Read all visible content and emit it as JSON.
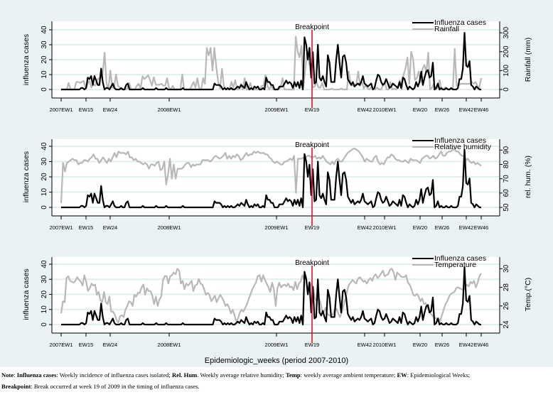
{
  "chart_data": [
    {
      "type": "line",
      "panel": "rainfall",
      "left_ylabel": "influenza cases",
      "right_ylabel": "Rainfall (mm)",
      "left_ylim": [
        0,
        40
      ],
      "left_yticks": [
        "0",
        "10",
        "20",
        "30",
        "40"
      ],
      "right_ylim": [
        0,
        300
      ],
      "right_yticks": [
        "0",
        "100",
        "200",
        "300"
      ],
      "breakpoint_label": "Breakpoint",
      "legend": [
        "Influenza cases",
        "Rainfall"
      ],
      "legend_position": "top-right",
      "series": [
        {
          "name": "Influenza cases",
          "color": "#000000",
          "axis": "left",
          "values": "flu"
        },
        {
          "name": "Rainfall",
          "color": "#b8b8b8",
          "axis": "right",
          "values": [
            0,
            0,
            0,
            0,
            35,
            0,
            0,
            0,
            40,
            40,
            35,
            40,
            45,
            5,
            30,
            45,
            10,
            30,
            20,
            50,
            60,
            60,
            90,
            195,
            30,
            5,
            100,
            10,
            10,
            80,
            20,
            10,
            0,
            0,
            0,
            5,
            35,
            0,
            0,
            0,
            20,
            30,
            5,
            70,
            55,
            65,
            75,
            50,
            20,
            65,
            25,
            25,
            25,
            30,
            20,
            20,
            60,
            10,
            0,
            20,
            0,
            0,
            0,
            0,
            80,
            0,
            0,
            0,
            0,
            20,
            40,
            10,
            60,
            5,
            0,
            60,
            30,
            220,
            180,
            220,
            100,
            220,
            120,
            40,
            5,
            110,
            20,
            0,
            0,
            0,
            40,
            10,
            50,
            0,
            0,
            30,
            0,
            60,
            0,
            0,
            35,
            0,
            0,
            0,
            0,
            0,
            20,
            20,
            75,
            20,
            0,
            20,
            0,
            0,
            0,
            0,
            10,
            60,
            0,
            0,
            0,
            0,
            0,
            0,
            280,
            200,
            170,
            230,
            15,
            100,
            200,
            150,
            80,
            10,
            15,
            40,
            10,
            10,
            35,
            0,
            0,
            0,
            0,
            5,
            0,
            0,
            0,
            0,
            5,
            0,
            0,
            0,
            95,
            30,
            20,
            20,
            30,
            95,
            20,
            40,
            5,
            25,
            5,
            0,
            15,
            0,
            0,
            10,
            0,
            0,
            20,
            40,
            0,
            0,
            40,
            0,
            5,
            0,
            10,
            50,
            0,
            80,
            110,
            170,
            30,
            200,
            160,
            50,
            60,
            95,
            40,
            110,
            130,
            90,
            195,
            0,
            10,
            30,
            0,
            10,
            50,
            0,
            0,
            10,
            5,
            0,
            5,
            0,
            215,
            20,
            20,
            30,
            30,
            30,
            30,
            30,
            30,
            40,
            30,
            40,
            20,
            10,
            60
          ]
        }
      ],
      "x_ticks": [
        "2007EW1",
        "EW15",
        "EW24",
        "2008EW1",
        "2009EW1",
        "EW19",
        "EW42",
        "2010EW1",
        "EW20",
        "EW26",
        "EW42",
        "EW46"
      ]
    },
    {
      "type": "line",
      "panel": "humidity",
      "left_ylabel": "influenza cases",
      "right_ylabel": "rel. hum. (%)",
      "left_ylim": [
        0,
        40
      ],
      "left_yticks": [
        "0",
        "10",
        "20",
        "30",
        "40"
      ],
      "right_ylim": [
        50,
        90
      ],
      "right_yticks": [
        "50",
        "60",
        "70",
        "80",
        "90"
      ],
      "breakpoint_label": "Breakpoint",
      "legend": [
        "Influenza cases",
        "Relative humidity"
      ],
      "legend_position": "top-right",
      "series": [
        {
          "name": "Influenza cases",
          "color": "#000000",
          "axis": "left",
          "values": "flu"
        },
        {
          "name": "Relative humidity",
          "color": "#b8b8b8",
          "axis": "right",
          "values": [
            53,
            81,
            75,
            81,
            82,
            83,
            84,
            83,
            83,
            80,
            81,
            81,
            83,
            83,
            82,
            84,
            85,
            87,
            84,
            84,
            81,
            83,
            85,
            83,
            81,
            84,
            82,
            85,
            88,
            85,
            89,
            88,
            88,
            88,
            87,
            89,
            85,
            85,
            83,
            84,
            82,
            82,
            81,
            80,
            81,
            80,
            77,
            80,
            80,
            79,
            81,
            82,
            76,
            77,
            82,
            66,
            73,
            84,
            70,
            80,
            70,
            77,
            77,
            77,
            78,
            80,
            81,
            81,
            78,
            80,
            79,
            80,
            80,
            80,
            83,
            83,
            83,
            83,
            82,
            83,
            85,
            86,
            85,
            84,
            85,
            86,
            88,
            84,
            86,
            84,
            86,
            85,
            87,
            86,
            83,
            84,
            86,
            88,
            86,
            87,
            87,
            89,
            88,
            89,
            88,
            88,
            88,
            87,
            87,
            85,
            84,
            82,
            81,
            82,
            81,
            80,
            80,
            82,
            82,
            83,
            84,
            83,
            86,
            60,
            84,
            84,
            84,
            85,
            85,
            86,
            86,
            85,
            85,
            86,
            84,
            85,
            84,
            86,
            84,
            82,
            81,
            80,
            82,
            80,
            83,
            84,
            82,
            82,
            84,
            86,
            88,
            89,
            90,
            91,
            91,
            90,
            89,
            87,
            85,
            82,
            84,
            83,
            82,
            82,
            85,
            86,
            82,
            80,
            81,
            80,
            83,
            85,
            85,
            87,
            86,
            84,
            83,
            83,
            82,
            82,
            83,
            82,
            81,
            84,
            83,
            83,
            83,
            82,
            81,
            84,
            85,
            86,
            86,
            84,
            85,
            86,
            84,
            85,
            87,
            89,
            86,
            86,
            88,
            89,
            89,
            90,
            91,
            89,
            89,
            87,
            86,
            86,
            83,
            84,
            82,
            81,
            82,
            80,
            81,
            80,
            79
          ]
        }
      ],
      "x_ticks": [
        "2007EW1",
        "EW15",
        "EW24",
        "2008EW1",
        "2009EW1",
        "EW19",
        "EW42",
        "2010EW1",
        "EW20",
        "EW26",
        "EW42",
        "EW46"
      ]
    },
    {
      "type": "line",
      "panel": "temperature",
      "left_ylabel": "influenza cases",
      "right_ylabel": "Temp.(°C)",
      "left_ylim": [
        0,
        40
      ],
      "left_yticks": [
        "0",
        "10",
        "20",
        "30",
        "40"
      ],
      "right_ylim": [
        24,
        30
      ],
      "right_yticks": [
        "24",
        "26",
        "28",
        "30"
      ],
      "breakpoint_label": "Breakpoint",
      "legend": [
        "Influenza cases",
        "Temperature"
      ],
      "legend_position": "top-right",
      "series": [
        {
          "name": "Influenza cases",
          "color": "#000000",
          "axis": "left",
          "values": "flu"
        },
        {
          "name": "Temperature",
          "color": "#b8b8b8",
          "axis": "right",
          "values": [
            25.2,
            26.5,
            26.4,
            29,
            29.2,
            28.7,
            28.6,
            28.5,
            28.7,
            29.1,
            28.8,
            28.6,
            28.2,
            29.3,
            28.6,
            27.6,
            27.9,
            28.4,
            28.2,
            28.3,
            27.2,
            27.5,
            26.6,
            26.4,
            27.5,
            26.4,
            26.2,
            27.0,
            25.4,
            25.4,
            25.1,
            24.5,
            24.2,
            24.9,
            25.0,
            24.8,
            25.6,
            26.0,
            26.5,
            26.4,
            26.0,
            27.2,
            27.0,
            27.4,
            27.4,
            28.0,
            28.3,
            27.2,
            27.9,
            27.6,
            27.6,
            27.1,
            26.2,
            27.0,
            26.0,
            26.7,
            27.0,
            28.8,
            29.2,
            29.2,
            28.4,
            29.2,
            29.3,
            29.6,
            29.4,
            30.0,
            29.8,
            28.4,
            28.7,
            27.8,
            28.4,
            28.2,
            28.4,
            28.7,
            27.6,
            28.2,
            28.3,
            28.9,
            28.4,
            28.3,
            27.8,
            27.2,
            27.4,
            27.2,
            26.5,
            26.8,
            27.1,
            26.4,
            26.8,
            27.2,
            26.9,
            26.5,
            26.0,
            26.2,
            25.8,
            25.2,
            25.6,
            25.0,
            24.3,
            24.7,
            25.3,
            25.6,
            25.4,
            25.8,
            26.2,
            26.8,
            27.3,
            27.8,
            28.2,
            28.5,
            29.2,
            29.3,
            28.6,
            29.3,
            28.8,
            28.4,
            28.0,
            27.5,
            28.5,
            27.8,
            26.0,
            27.9,
            28.5,
            28.0,
            28.2,
            28.3,
            28.1,
            28.4,
            28.0,
            28.1,
            27.7,
            28.6,
            27.8,
            28.4,
            28.6,
            29.3,
            28.8,
            29.2,
            27.6,
            28.0,
            28.4,
            28.0,
            26.8,
            26.5,
            27.0,
            26.4,
            25.5,
            25.4,
            25.8,
            25.1,
            25.0,
            25.0,
            25.1,
            25.6,
            25.7,
            25.2,
            24.8,
            25.3,
            26.1,
            26.8,
            27.6,
            28.3,
            28.5,
            28.8,
            28.6,
            28.4,
            28.9,
            29.1,
            28.9,
            28.6,
            28.7,
            28.4,
            28.8,
            29.0,
            28.7,
            29.2,
            29.4,
            29.0,
            29.2,
            29.5,
            29.8,
            29.2,
            29.3,
            29.4,
            29.9,
            30.0,
            29.6,
            28.8,
            29.6,
            29.4,
            29.2,
            29.1,
            29.1,
            29.3,
            28.5,
            28.3,
            27.8,
            27.2,
            27.1,
            27.3,
            27.0,
            26.5,
            26.8,
            26.2,
            26.3,
            25.8,
            25.5,
            25.1,
            24.9,
            24.8,
            24.6,
            24.7,
            24.4,
            25.0,
            25.6,
            26.2,
            26.5,
            27.0,
            27.3,
            27.4,
            27.5,
            27.9,
            28.0,
            27.9,
            27.8,
            27.7,
            28.0,
            28.3,
            28.1,
            28.6,
            28.4,
            28.7,
            28.0,
            28.5,
            29.2,
            29.5
          ]
        }
      ],
      "x_ticks": [
        "2007EW1",
        "EW15",
        "EW24",
        "2008EW1",
        "2009EW1",
        "EW19",
        "EW42",
        "2010EW1",
        "EW20",
        "EW26",
        "EW42",
        "EW46"
      ]
    }
  ],
  "flu_series": [
    0,
    0,
    0,
    0,
    0,
    0,
    0,
    0,
    0,
    0,
    0,
    0,
    1,
    1,
    0,
    1,
    8,
    7,
    9,
    3,
    9,
    6,
    3,
    3,
    14,
    5,
    0,
    1,
    1,
    0,
    2,
    4,
    1,
    0,
    0,
    0,
    1,
    0,
    0,
    3,
    4,
    0,
    0,
    0,
    0,
    0,
    0,
    0,
    0,
    1,
    0,
    0,
    0,
    0,
    0,
    0,
    0,
    1,
    0,
    0,
    0,
    0,
    0,
    1,
    0,
    0,
    0,
    0,
    0,
    0,
    0,
    0,
    0,
    1,
    0,
    0,
    0,
    0,
    0,
    0,
    0,
    0,
    0,
    0,
    0,
    0,
    0,
    0,
    0,
    0,
    0,
    0,
    4,
    3,
    3,
    3,
    2,
    0,
    1,
    0,
    1,
    0,
    1,
    0,
    0,
    1,
    2,
    1,
    3,
    2,
    1,
    5,
    2,
    0,
    1,
    0,
    2,
    1,
    2,
    0,
    0,
    1,
    0,
    8,
    5,
    5,
    3,
    3,
    0,
    0,
    0,
    2,
    2,
    2,
    4,
    6,
    4,
    5,
    4,
    1,
    5,
    2,
    5,
    1,
    6,
    0,
    35,
    30,
    20,
    28,
    8,
    25,
    4,
    5,
    30,
    8,
    6,
    9,
    5,
    2,
    23,
    18,
    5,
    5,
    5,
    20,
    30,
    18,
    8,
    22,
    23,
    18,
    7,
    5,
    3,
    5,
    2,
    3,
    4,
    3,
    5,
    9,
    4,
    3,
    2,
    3,
    4,
    0,
    1,
    6,
    10,
    9,
    5,
    3,
    4,
    7,
    4,
    1,
    2,
    4,
    3,
    2,
    1,
    5,
    1,
    8,
    7,
    3,
    0,
    2,
    1,
    0,
    1,
    5,
    2,
    5,
    12,
    3,
    8,
    12,
    13,
    8,
    9,
    18,
    0,
    1,
    4,
    0,
    1,
    0,
    0,
    1,
    0,
    0,
    1,
    0,
    0,
    0,
    1,
    7,
    7,
    14,
    38,
    16,
    15,
    19,
    3,
    2,
    0,
    2,
    1,
    0,
    0
  ],
  "xaxis_title": "Epidemiologic_weeks (period 2007-2010)",
  "note": {
    "p1_label": "Note",
    "p1_sep": ": ",
    "t1_label": "Influenza cases",
    "t1_text": ": Weekly incidence of influenza cases isolated; ",
    "t2_label": "Rel. Hum",
    "t2_text": ". Weekly average relative humidity; ",
    "t3_label": "Temp",
    "t3_text": ": weekly average ambient temperature; ",
    "t4_label": "EW",
    "t4_text": ": Epidemiological Weeks;",
    "t5_label": "Breakpoint",
    "t5_text": ": Break occurred at week 19 of 2009 in the timing of influenza cases."
  },
  "colors": {
    "background": "#eaf2f3",
    "plot_bg": "#ffffff",
    "grid": "#e3ecee",
    "flu": "#000000",
    "covariate": "#b8b8b8",
    "breakpoint": "#e8141e"
  }
}
